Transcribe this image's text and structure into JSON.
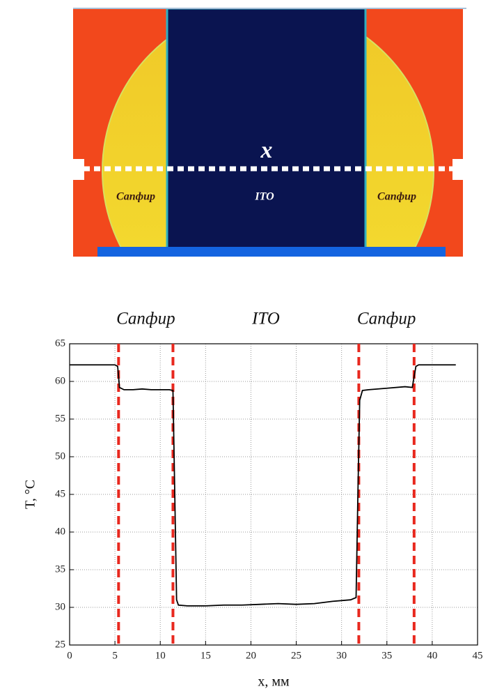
{
  "image_labels": {
    "axis": "x",
    "left": "Сапфир",
    "center": "ITO",
    "right": "Сапфир"
  },
  "chart_data": {
    "type": "line",
    "annotations": [
      "Сапфир",
      "ITO",
      "Сапфир"
    ],
    "xlabel": "x, мм",
    "ylabel": "T, °C",
    "x": [
      0,
      5,
      5.3,
      5.5,
      6,
      7,
      8,
      9,
      10,
      11,
      11.4,
      11.6,
      11.8,
      12,
      13,
      15,
      17,
      19,
      21,
      23,
      25,
      27,
      29,
      31,
      31.6,
      31.8,
      32,
      32.3,
      33,
      35,
      37,
      37.8,
      38.2,
      38.5,
      40,
      42.6
    ],
    "values": [
      62.2,
      62.2,
      62.0,
      59.2,
      58.9,
      58.9,
      59.0,
      58.9,
      58.9,
      58.9,
      58.8,
      45,
      31,
      30.3,
      30.2,
      30.2,
      30.3,
      30.3,
      30.4,
      30.5,
      30.4,
      30.5,
      30.8,
      31.0,
      31.3,
      45,
      57.5,
      58.8,
      58.9,
      59.1,
      59.3,
      59.2,
      62.0,
      62.2,
      62.2,
      62.2
    ],
    "color": "#000000",
    "vlines": [
      5.4,
      11.4,
      31.9,
      38.0
    ],
    "vline_color": "#e8281e",
    "xlim": [
      0,
      45
    ],
    "xticks": [
      0,
      5,
      10,
      15,
      20,
      25,
      30,
      35,
      40,
      45
    ],
    "ylim": [
      25,
      65
    ],
    "yticks": [
      25,
      30,
      35,
      40,
      45,
      50,
      55,
      60,
      65
    ],
    "grid": true
  }
}
